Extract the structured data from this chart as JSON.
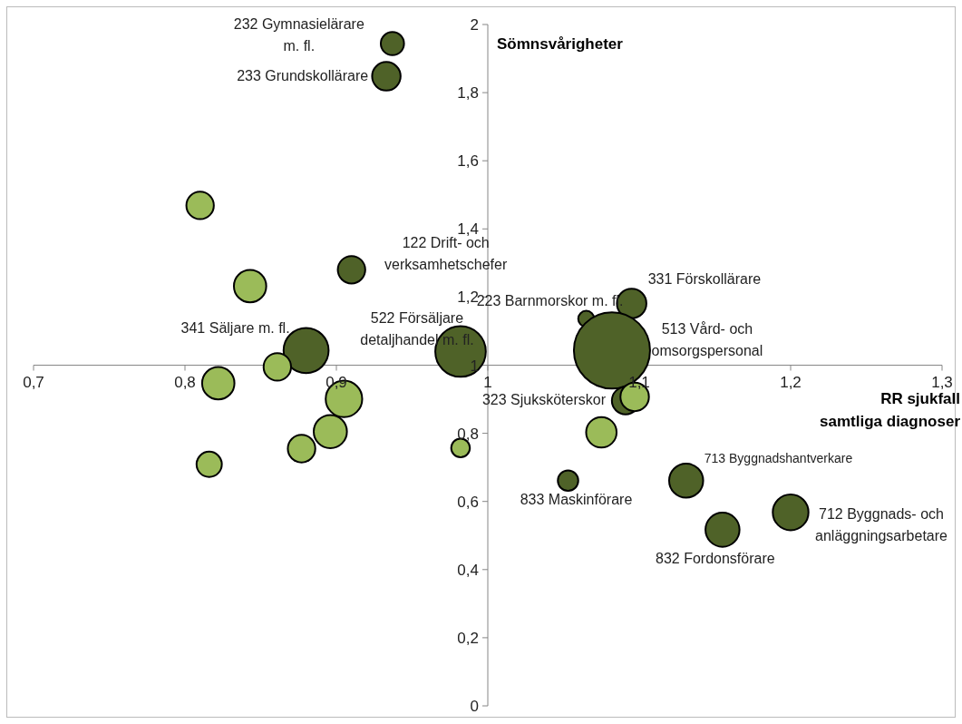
{
  "chart_data": {
    "type": "bubble",
    "xlabel": "RR sjukfall\nsamtliga diagnoser",
    "ylabel": "Sömnsvårigheter",
    "xlim": [
      0.7,
      1.3
    ],
    "xticks": [
      {
        "value": 0.7,
        "label": "0,7"
      },
      {
        "value": 0.8,
        "label": "0,8"
      },
      {
        "value": 0.9,
        "label": "0,9"
      },
      1,
      {
        "value": 1.1,
        "label": "1,1"
      },
      {
        "value": 1.2,
        "label": "1,2"
      },
      {
        "value": 1.3,
        "label": "1,3"
      }
    ],
    "ylim": [
      0,
      2
    ],
    "yticks": [
      0,
      {
        "value": 0.2,
        "label": "0,2"
      },
      {
        "value": 0.4,
        "label": "0,4"
      },
      {
        "value": 0.6,
        "label": "0,6"
      },
      {
        "value": 0.8,
        "label": "0,8"
      },
      1,
      {
        "value": 1.2,
        "label": "1,2"
      },
      {
        "value": 1.4,
        "label": "1,4"
      },
      {
        "value": 1.6,
        "label": "1,6"
      },
      {
        "value": 1.8,
        "label": "1,8"
      },
      2
    ],
    "grid": false,
    "legend": false,
    "series": [
      {
        "color": "#4f6228",
        "x": [
          0.937,
          0.933,
          0.91,
          0.88,
          0.982,
          1.065,
          1.095,
          1.082,
          1.091,
          1.053,
          1.131,
          1.155,
          1.2
        ],
        "values": [
          1.944,
          1.848,
          1.28,
          1.043,
          1.04,
          1.136,
          1.181,
          1.043,
          0.896,
          0.661,
          0.661,
          0.517,
          0.568
        ],
        "sizes": [
          0.093,
          0.14,
          0.13,
          0.35,
          0.44,
          0.044,
          0.15,
          1,
          0.13,
          0.072,
          0.2,
          0.2,
          0.22
        ]
      },
      {
        "color": "#9bbb59",
        "x": [
          0.81,
          0.843,
          0.822,
          0.861,
          0.905,
          0.896,
          0.877,
          0.816,
          0.982,
          1.075,
          1.097
        ],
        "values": [
          1.469,
          1.232,
          0.947,
          0.995,
          0.901,
          0.805,
          0.755,
          0.709,
          0.757,
          0.803,
          0.907
        ],
        "sizes": [
          0.13,
          0.18,
          0.18,
          0.13,
          0.23,
          0.19,
          0.13,
          0.11,
          0.06,
          0.16,
          0.14
        ]
      }
    ],
    "annotations": [
      {
        "text": "232 Gymnasielärare\nm. fl.",
        "x": 0.937,
        "y": 1.944
      },
      {
        "text": "233 Grundskollärare",
        "x": 0.933,
        "y": 1.848
      },
      {
        "text": "122 Drift- och\nverksamhetschefer",
        "x": 0.91,
        "y": 1.28
      },
      {
        "text": "341 Säljare m. fl.",
        "x": 0.88,
        "y": 1.043
      },
      {
        "text": "522 Försäljare\ndetaljhandel m. fl.",
        "x": 0.982,
        "y": 1.04
      },
      {
        "text": "223 Barnmorskor m. fl.",
        "x": 1.065,
        "y": 1.136
      },
      {
        "text": "331 Förskollärare",
        "x": 1.095,
        "y": 1.181
      },
      {
        "text": "513 Vård- och\nomsorgspersonal",
        "x": 1.082,
        "y": 1.043
      },
      {
        "text": "323 Sjuksköterskor",
        "x": 1.091,
        "y": 0.896
      },
      {
        "text": "713 Byggnadshantverkare",
        "x": 1.131,
        "y": 0.661
      },
      {
        "text": "833 Maskinförare",
        "x": 1.053,
        "y": 0.661
      },
      {
        "text": "832 Fordonsförare",
        "x": 1.155,
        "y": 0.517
      },
      {
        "text": "712 Byggnads- och\nanläggningsarbetare",
        "x": 1.2,
        "y": 0.568
      }
    ]
  }
}
